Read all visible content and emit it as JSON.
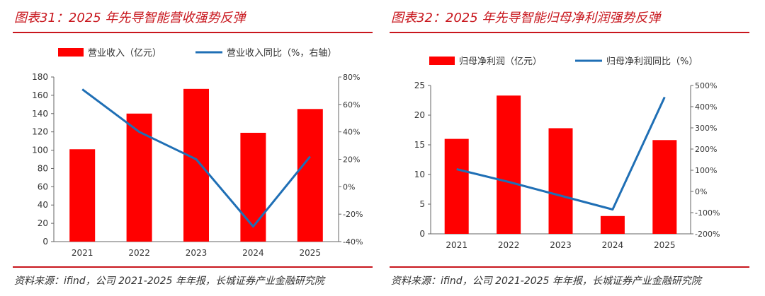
{
  "chart_data": [
    {
      "type": "bar",
      "title": "图表31：2025 年先导智能营收强势反弹",
      "categories": [
        "2021",
        "2022",
        "2023",
        "2024",
        "2025"
      ],
      "series": [
        {
          "name": "营业收入（亿元）",
          "type": "bar",
          "axis": "left",
          "color": "#ff0000",
          "values": [
            101,
            140,
            167,
            119,
            145
          ]
        },
        {
          "name": "营业收入同比（%，右轴）",
          "type": "line",
          "axis": "right",
          "color": "#1f6fb5",
          "values": [
            71,
            40,
            20,
            -29,
            22
          ]
        }
      ],
      "ylim": [
        0,
        180
      ],
      "yticks": [
        "0",
        "20",
        "40",
        "60",
        "80",
        "100",
        "120",
        "140",
        "160",
        "180"
      ],
      "y2lim": [
        -40,
        80
      ],
      "y2ticks": [
        "-40%",
        "-20%",
        "0%",
        "20%",
        "40%",
        "60%",
        "80%"
      ],
      "legend": "top",
      "source": "资料来源：ifind，公司 2021-2025 年年报，长城证券产业金融研究院"
    },
    {
      "type": "bar",
      "title": "图表32：2025 年先导智能归母净利润强势反弹",
      "categories": [
        "2021",
        "2022",
        "2023",
        "2024",
        "2025"
      ],
      "series": [
        {
          "name": "归母净利润（亿元）",
          "type": "bar",
          "axis": "left",
          "color": "#ff0000",
          "values": [
            16,
            23.3,
            17.8,
            3,
            15.8
          ]
        },
        {
          "name": "归母净利润同比（%）",
          "type": "line",
          "axis": "right",
          "color": "#1f6fb5",
          "values": [
            105,
            45,
            -20,
            -85,
            445
          ]
        }
      ],
      "ylim": [
        0,
        25
      ],
      "yticks": [
        "0",
        "5",
        "10",
        "15",
        "20",
        "25"
      ],
      "y2lim": [
        -200,
        500
      ],
      "y2ticks": [
        "-200%",
        "-100%",
        "0%",
        "100%",
        "200%",
        "300%",
        "400%",
        "500%"
      ],
      "legend": "top",
      "source": "资料来源：ifind，公司 2021-2025 年年报，长城证券产业金融研究院"
    }
  ]
}
